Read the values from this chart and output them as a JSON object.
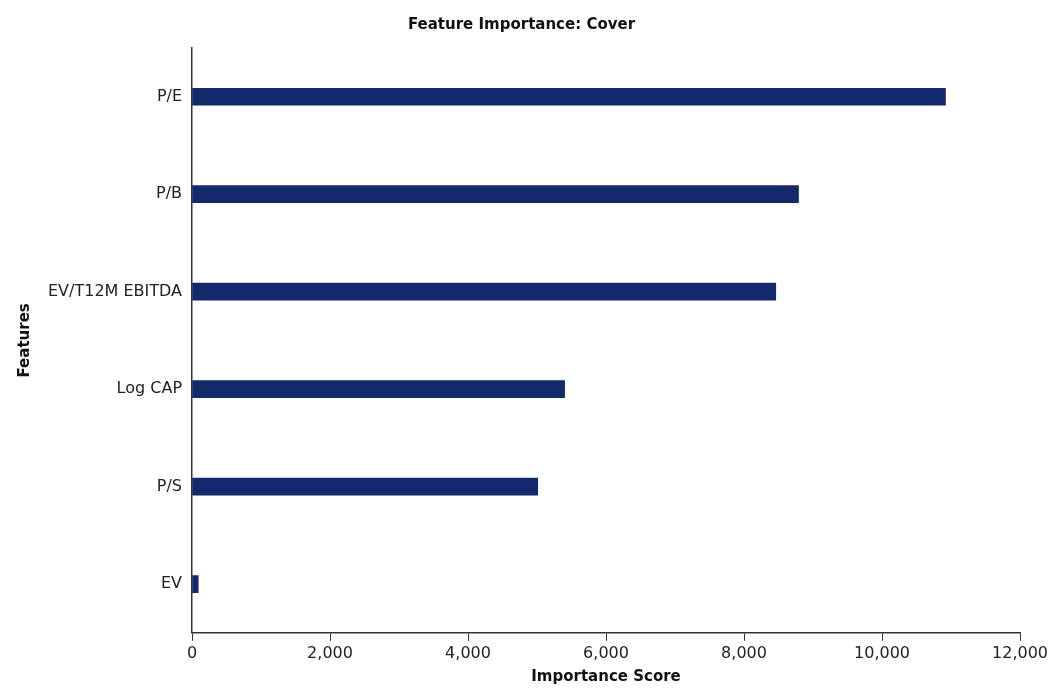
{
  "chart_data": {
    "type": "bar",
    "orientation": "horizontal",
    "title": "Feature Importance: Cover",
    "xlabel": "Importance Score",
    "ylabel": "Features",
    "categories": [
      "P/E",
      "P/B",
      "EV/T12M EBITDA",
      "Log CAP",
      "P/S",
      "EV"
    ],
    "values": [
      10920,
      8790,
      8460,
      5400,
      5010,
      90
    ],
    "color": "#13296b",
    "xlim": [
      0,
      12000
    ],
    "xticks": [
      {
        "value": 0,
        "label": "0"
      },
      {
        "value": 2000,
        "label": "2,000"
      },
      {
        "value": 4000,
        "label": "4,000"
      },
      {
        "value": 6000,
        "label": "6,000"
      },
      {
        "value": 8000,
        "label": "8,000"
      },
      {
        "value": 10000,
        "label": "10,000"
      },
      {
        "value": 12000,
        "label": "12,000"
      }
    ],
    "grid": false,
    "legend": false
  }
}
